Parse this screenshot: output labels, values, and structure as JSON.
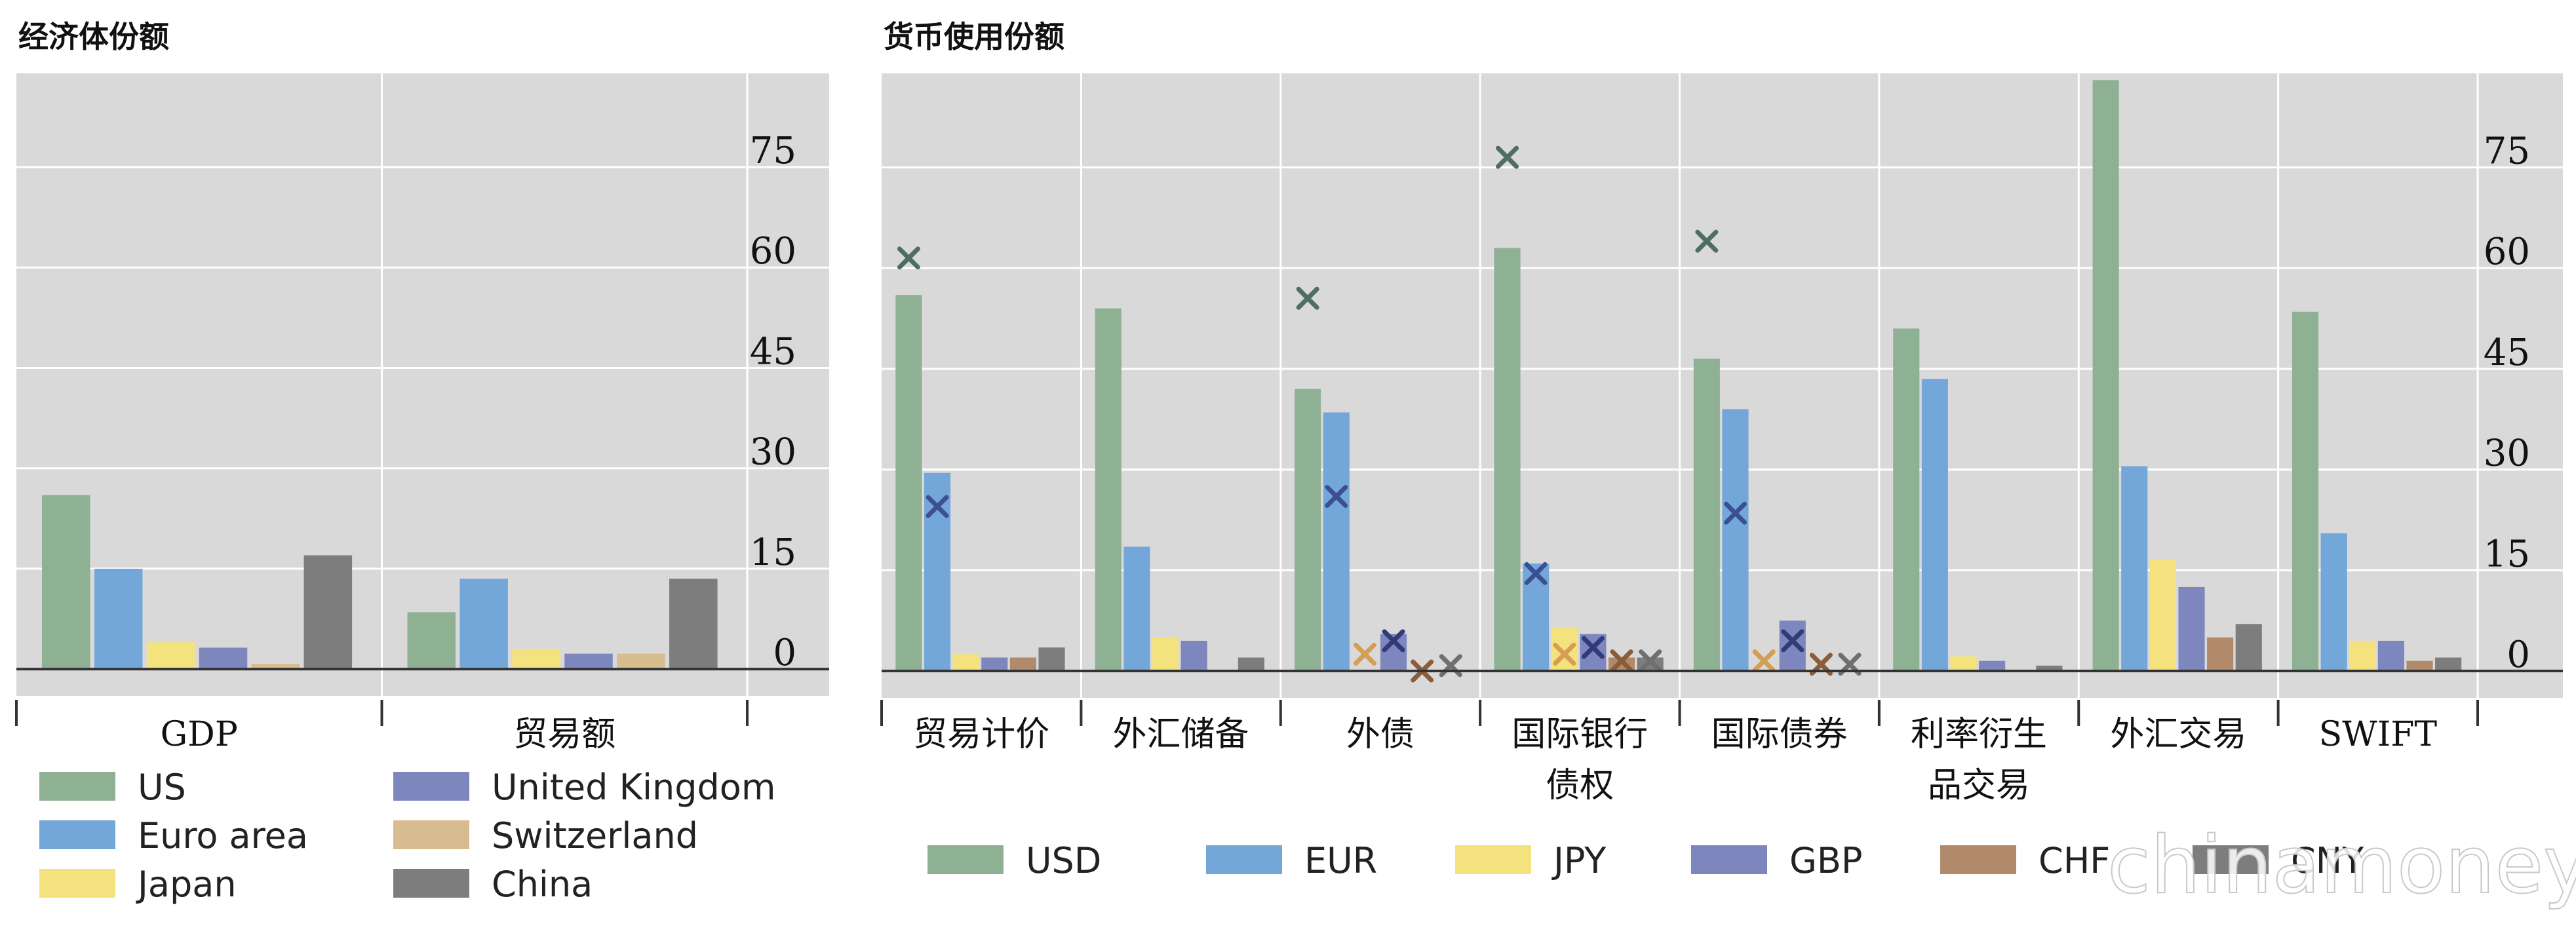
{
  "colors": {
    "plot_bg": "#d9d9d9",
    "grid": "#ffffff",
    "baseline": "#333333",
    "separator": "#ffffff",
    "series": {
      "US": "#8fb193",
      "Euro area": "#74a7d9",
      "Japan": "#f4e27e",
      "United Kingdom": "#7e86be",
      "Switzerland": "#d7bc90",
      "China": "#7d7d7d",
      "USD": "#8fb193",
      "EUR": "#74a7d9",
      "JPY": "#f4e27e",
      "GBP": "#7e86be",
      "CHF": "#b08a6a",
      "CNY": "#7d7d7d"
    },
    "markers": {
      "USD": "#4e6e65",
      "EUR": "#3b4f92",
      "JPY": "#d49e54",
      "GBP": "#333a7a",
      "CHF": "#8a5c3a",
      "CNY": "#6f6f6f"
    }
  },
  "chart_data": [
    {
      "type": "bar",
      "title": "经济体份额",
      "categories": [
        "GDP",
        "贸易额"
      ],
      "series": [
        {
          "name": "US",
          "values": [
            26,
            8.5
          ]
        },
        {
          "name": "Euro area",
          "values": [
            15,
            13.5
          ]
        },
        {
          "name": "Japan",
          "values": [
            4,
            3
          ]
        },
        {
          "name": "United Kingdom",
          "values": [
            3.2,
            2.3
          ]
        },
        {
          "name": "Switzerland",
          "values": [
            0.8,
            2.3
          ]
        },
        {
          "name": "China",
          "values": [
            17,
            13.5
          ]
        }
      ],
      "yticks": [
        0,
        15,
        30,
        45,
        60,
        75
      ],
      "ylim": [
        -4,
        89
      ],
      "grid": true,
      "legend_position": "bottom"
    },
    {
      "type": "bar",
      "title": "货币使用份额",
      "categories": [
        "贸易计价",
        "外汇储备",
        "外债",
        "国际银行\n债权",
        "国际债券",
        "利率衍生\n品交易",
        "外汇交易",
        "SWIFT"
      ],
      "series": [
        {
          "name": "USD",
          "values": [
            56,
            54,
            42,
            63,
            46.5,
            51,
            88,
            53.5
          ],
          "markers": [
            61.5,
            null,
            55.5,
            76.5,
            64,
            null,
            null,
            null
          ]
        },
        {
          "name": "EUR",
          "values": [
            29.5,
            18.5,
            38.5,
            16,
            39,
            43.5,
            30.5,
            20.5
          ],
          "markers": [
            24.5,
            null,
            26,
            14.5,
            23.5,
            null,
            null,
            null
          ]
        },
        {
          "name": "JPY",
          "values": [
            2.5,
            5,
            0,
            6.5,
            0,
            2.2,
            16.5,
            4.5
          ],
          "markers": [
            null,
            null,
            2.5,
            2.5,
            1.5,
            null,
            null,
            null
          ]
        },
        {
          "name": "GBP",
          "values": [
            2,
            4.5,
            5.5,
            5.5,
            7.5,
            1.5,
            12.5,
            4.5
          ],
          "markers": [
            null,
            null,
            4.5,
            3.5,
            4.5,
            null,
            null,
            null
          ]
        },
        {
          "name": "CHF",
          "values": [
            2,
            0,
            0,
            2,
            0,
            0,
            5,
            1.5
          ],
          "markers": [
            null,
            null,
            0,
            1.5,
            1,
            null,
            null,
            null
          ]
        },
        {
          "name": "CNY",
          "values": [
            3.5,
            2,
            0,
            2,
            0,
            0.8,
            7,
            2
          ],
          "markers": [
            null,
            null,
            0.8,
            1.5,
            1,
            null,
            null,
            null
          ]
        }
      ],
      "yticks": [
        0,
        15,
        30,
        45,
        60,
        75
      ],
      "ylim": [
        -4,
        89
      ],
      "grid": true,
      "legend_position": "bottom"
    }
  ],
  "watermark": "chinamoney"
}
